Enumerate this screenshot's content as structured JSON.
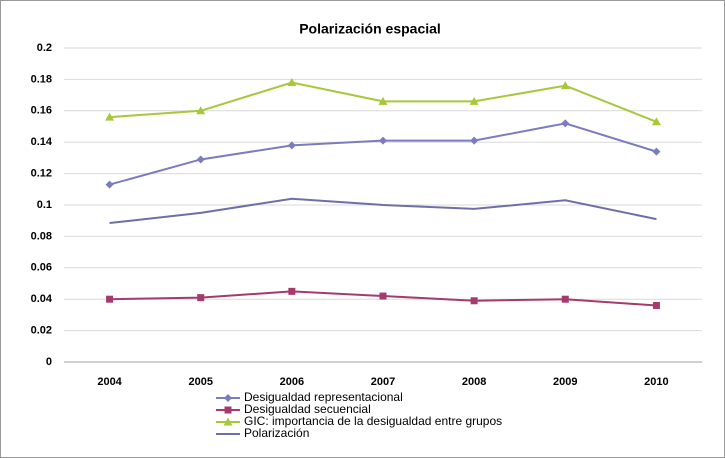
{
  "chart_data": {
    "type": "line",
    "title": "Polarización espacial",
    "categories": [
      "2004",
      "2005",
      "2006",
      "2007",
      "2008",
      "2009",
      "2010"
    ],
    "series": [
      {
        "name": "Desigualdad representacional",
        "color": "#7b7bc0",
        "marker": "diamond",
        "values": [
          0.113,
          0.129,
          0.138,
          0.141,
          0.141,
          0.152,
          0.134
        ]
      },
      {
        "name": "Desigualdad secuencial",
        "color": "#a63a6e",
        "marker": "square",
        "values": [
          0.04,
          0.041,
          0.045,
          0.042,
          0.039,
          0.04,
          0.036
        ]
      },
      {
        "name": "GIC: importancia de la desigualdad entre grupos",
        "color": "#a6c83a",
        "marker": "triangle",
        "values": [
          0.156,
          0.16,
          0.178,
          0.166,
          0.166,
          0.176,
          0.153
        ]
      },
      {
        "name": "Polarización",
        "color": "#6f6fa8",
        "marker": "none",
        "values": [
          0.0885,
          0.095,
          0.104,
          0.1,
          0.0975,
          0.103,
          0.091
        ]
      }
    ],
    "ylim": [
      0,
      0.2
    ],
    "yticks": [
      0,
      0.02,
      0.04,
      0.06,
      0.08,
      0.1,
      0.12,
      0.14,
      0.16,
      0.18,
      0.2
    ],
    "grid": true
  }
}
